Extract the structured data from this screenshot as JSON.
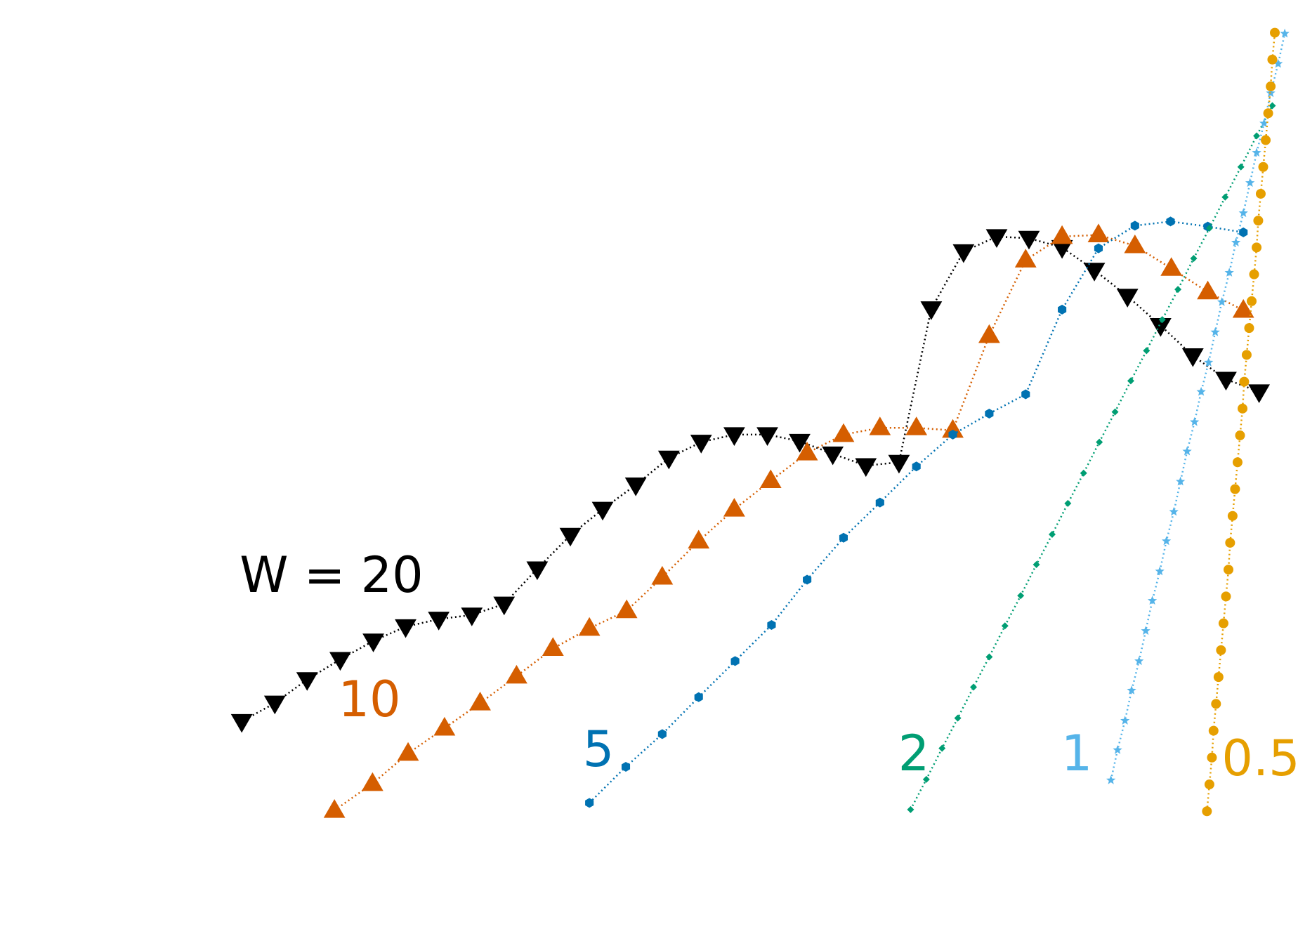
{
  "chart_data": {
    "type": "line",
    "xlim": [
      0,
      1568
    ],
    "ylim": [
      0,
      1130
    ],
    "series": [
      {
        "name": "W = 20",
        "color": "#000000",
        "marker": "v",
        "x": [
          292,
          332,
          371,
          411,
          451,
          490,
          530,
          570,
          609,
          649,
          689,
          728,
          768,
          808,
          847,
          887,
          927,
          966,
          1006,
          1046,
          1086,
          1125,
          1164,
          1204,
          1243,
          1283,
          1322,
          1362,
          1402,
          1441,
          1481,
          1521
        ],
        "values": [
          270,
          292,
          320,
          344,
          366,
          383,
          392,
          397,
          410,
          452,
          492,
          523,
          552,
          584,
          603,
          612,
          612,
          604,
          589,
          575,
          579,
          762,
          830,
          848,
          846,
          835,
          808,
          777,
          742,
          706,
          678,
          663
        ]
      },
      {
        "name": "10",
        "color": "#d55e00",
        "marker": "^",
        "x": [
          404,
          450,
          493,
          537,
          580,
          624,
          668,
          712,
          757,
          800,
          844,
          887,
          931,
          975,
          1019,
          1063,
          1107,
          1151,
          1195,
          1239,
          1283,
          1327,
          1371,
          1415,
          1459,
          1502
        ],
        "values": [
          164,
          196,
          232,
          262,
          292,
          324,
          357,
          381,
          402,
          442,
          485,
          523,
          557,
          590,
          612,
          620,
          620,
          617,
          730,
          820,
          848,
          850,
          837,
          810,
          782,
          760
        ]
      },
      {
        "name": "5",
        "color": "#0072b2",
        "marker": "h",
        "x": [
          712,
          756,
          800,
          844,
          888,
          932,
          975,
          1019,
          1063,
          1107,
          1151,
          1195,
          1239,
          1283,
          1327,
          1371,
          1414,
          1459,
          1502
        ],
        "values": [
          173,
          216,
          255,
          299,
          342,
          385,
          439,
          489,
          531,
          574,
          612,
          637,
          660,
          761,
          834,
          861,
          866,
          860,
          853
        ]
      },
      {
        "name": "2",
        "color": "#009e73",
        "marker": "D",
        "x": [
          1100,
          1119,
          1138,
          1157,
          1176,
          1195,
          1214,
          1233,
          1252,
          1271,
          1290,
          1309,
          1328,
          1347,
          1366,
          1385,
          1404,
          1423,
          1442,
          1461,
          1480,
          1499,
          1518,
          1537
        ],
        "values": [
          165,
          201,
          238,
          274,
          311,
          347,
          384,
          420,
          457,
          493,
          530,
          566,
          603,
          639,
          676,
          712,
          749,
          785,
          822,
          858,
          895,
          931,
          968,
          1004
        ]
      },
      {
        "name": "1",
        "color": "#56b4e9",
        "marker": "*",
        "x": [
          1342,
          1350,
          1359,
          1367,
          1376,
          1384,
          1392,
          1401,
          1409,
          1418,
          1426,
          1434,
          1443,
          1451,
          1460,
          1468,
          1476,
          1485,
          1493,
          1502,
          1510,
          1518,
          1527,
          1535,
          1544,
          1552
        ],
        "values": [
          200,
          236,
          271,
          307,
          342,
          378,
          414,
          449,
          485,
          520,
          556,
          592,
          627,
          663,
          698,
          734,
          770,
          805,
          841,
          876,
          912,
          948,
          983,
          1019,
          1054,
          1090
        ]
      },
      {
        "name": "0.5",
        "color": "#e69f00",
        "marker": "o",
        "x": [
          1458,
          1461,
          1464,
          1466,
          1469,
          1472,
          1475,
          1478,
          1481,
          1484,
          1486,
          1489,
          1492,
          1495,
          1498,
          1501,
          1503,
          1506,
          1509,
          1512,
          1515,
          1518,
          1520,
          1523,
          1526,
          1529,
          1532,
          1535,
          1537,
          1540
        ],
        "values": [
          163,
          195,
          227,
          259,
          291,
          323,
          355,
          387,
          419,
          451,
          483,
          515,
          547,
          579,
          611,
          643,
          675,
          707,
          739,
          771,
          803,
          835,
          867,
          899,
          931,
          963,
          995,
          1027,
          1059,
          1091
        ]
      }
    ]
  }
}
